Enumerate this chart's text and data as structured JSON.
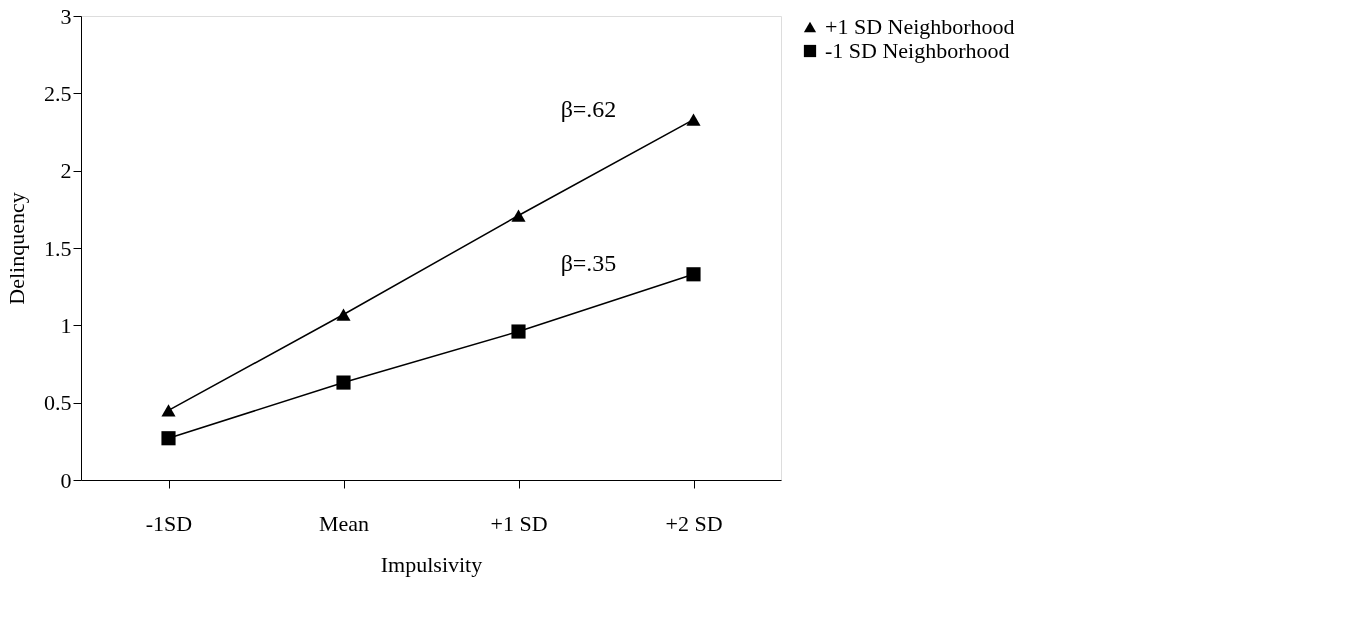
{
  "chart_data": {
    "type": "line",
    "xlabel": "Impulsivity",
    "ylabel": "Delinquency",
    "categories": [
      "-1SD",
      "Mean",
      "+1 SD",
      "+2 SD"
    ],
    "series": [
      {
        "name": "+1 SD Neighborhood",
        "color": "#000000",
        "marker": "triangle",
        "values": [
          0.45,
          1.07,
          1.71,
          2.33
        ]
      },
      {
        "name": "-1 SD Neighborhood",
        "color": "#000000",
        "marker": "square",
        "values": [
          0.27,
          0.63,
          0.96,
          1.33
        ]
      }
    ],
    "annotations": [
      "β=.62",
      "β=.35"
    ],
    "ylim": [
      0,
      3
    ],
    "yticks": [
      0,
      0.5,
      1,
      1.5,
      2,
      2.5,
      3
    ],
    "grid": false,
    "legend": "right",
    "line_style": "solid"
  }
}
